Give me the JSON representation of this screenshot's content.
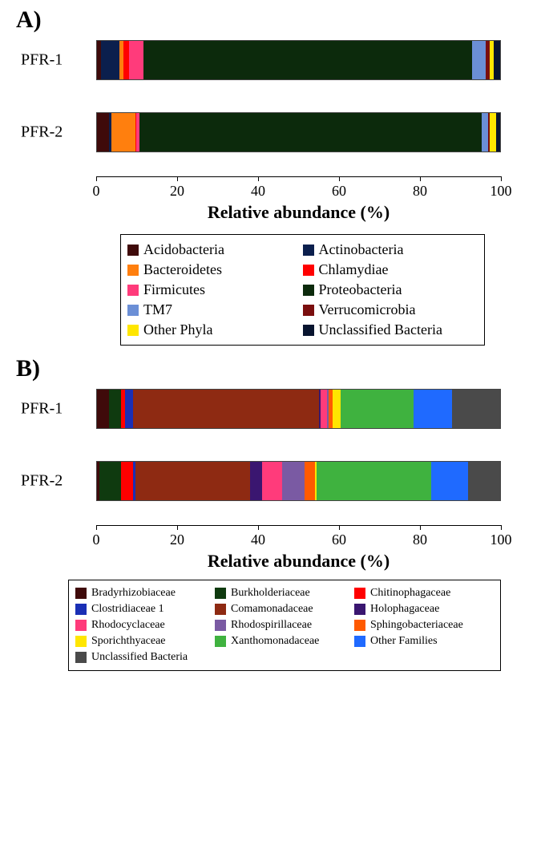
{
  "panelA": {
    "label": "A)",
    "xlabel": "Relative abundance (%)",
    "xlim": [
      0,
      100
    ],
    "xtick_step": 20,
    "tick_fontsize": 18,
    "xlabel_fontsize": 22,
    "rows": [
      {
        "label": "PFR-1",
        "segments": [
          {
            "name": "Acidobacteria",
            "value": 1.0,
            "color": "#3f0a0a"
          },
          {
            "name": "Actinobacteria",
            "value": 4.5,
            "color": "#0b1f4d"
          },
          {
            "name": "Bacteroidetes",
            "value": 1.0,
            "color": "#ff7f0e"
          },
          {
            "name": "Chlamydiae",
            "value": 1.5,
            "color": "#ff0000"
          },
          {
            "name": "Firmicutes",
            "value": 3.5,
            "color": "#ff3b7b"
          },
          {
            "name": "Proteobacteria",
            "value": 81.5,
            "color": "#0c2a0c"
          },
          {
            "name": "TM7",
            "value": 3.5,
            "color": "#6b8fd6"
          },
          {
            "name": "Verrucomicrobia",
            "value": 1.0,
            "color": "#7a0e0e"
          },
          {
            "name": "Other Phyla",
            "value": 1.0,
            "color": "#ffe600"
          },
          {
            "name": "Unclassified Bacteria",
            "value": 1.5,
            "color": "#08142f"
          }
        ]
      },
      {
        "label": "PFR-2",
        "segments": [
          {
            "name": "Acidobacteria",
            "value": 3.0,
            "color": "#3f0a0a"
          },
          {
            "name": "Actinobacteria",
            "value": 0.5,
            "color": "#0b1f4d"
          },
          {
            "name": "Bacteroidetes",
            "value": 6.0,
            "color": "#ff7f0e"
          },
          {
            "name": "Chlamydiae",
            "value": 0.3,
            "color": "#ff0000"
          },
          {
            "name": "Firmicutes",
            "value": 0.7,
            "color": "#ff3b7b"
          },
          {
            "name": "Proteobacteria",
            "value": 85.0,
            "color": "#0c2a0c"
          },
          {
            "name": "TM7",
            "value": 1.5,
            "color": "#6b8fd6"
          },
          {
            "name": "Verrucomicrobia",
            "value": 0.5,
            "color": "#7a0e0e"
          },
          {
            "name": "Other Phyla",
            "value": 1.5,
            "color": "#ffe600"
          },
          {
            "name": "Unclassified Bacteria",
            "value": 1.0,
            "color": "#08142f"
          }
        ]
      }
    ],
    "legend": {
      "columns": 2,
      "fontsize": 18,
      "items": [
        {
          "label": "Acidobacteria",
          "color": "#3f0a0a"
        },
        {
          "label": "Actinobacteria",
          "color": "#0b1f4d"
        },
        {
          "label": "Bacteroidetes",
          "color": "#ff7f0e"
        },
        {
          "label": "Chlamydiae",
          "color": "#ff0000"
        },
        {
          "label": "Firmicutes",
          "color": "#ff3b7b"
        },
        {
          "label": "Proteobacteria",
          "color": "#0c2a0c"
        },
        {
          "label": "TM7",
          "color": "#6b8fd6"
        },
        {
          "label": "Verrucomicrobia",
          "color": "#7a0e0e"
        },
        {
          "label": "Other Phyla",
          "color": "#ffe600"
        },
        {
          "label": "Unclassified Bacteria",
          "color": "#08142f"
        }
      ]
    }
  },
  "panelB": {
    "label": "B)",
    "xlabel": "Relative abundance (%)",
    "xlim": [
      0,
      100
    ],
    "xtick_step": 20,
    "tick_fontsize": 18,
    "xlabel_fontsize": 22,
    "rows": [
      {
        "label": "PFR-1",
        "segments": [
          {
            "name": "Bradyrhizobiaceae",
            "value": 3.0,
            "color": "#3f0a0a"
          },
          {
            "name": "Burkholderiaceae",
            "value": 3.0,
            "color": "#0f3a0f"
          },
          {
            "name": "Chitinophagaceae",
            "value": 1.0,
            "color": "#ff0000"
          },
          {
            "name": "Clostridiaceae 1",
            "value": 2.0,
            "color": "#1a2fb5"
          },
          {
            "name": "Comamonadaceae",
            "value": 46.0,
            "color": "#8e2a12"
          },
          {
            "name": "Holophagaceae",
            "value": 0.5,
            "color": "#3a1670"
          },
          {
            "name": "Rhodocyclaceae",
            "value": 1.5,
            "color": "#ff3b7b"
          },
          {
            "name": "Rhodospirillaceae",
            "value": 0.5,
            "color": "#7a5aa3"
          },
          {
            "name": "Sphingobacteriaceae",
            "value": 1.0,
            "color": "#ff5a00"
          },
          {
            "name": "Sporichthyaceae",
            "value": 2.0,
            "color": "#ffe600"
          },
          {
            "name": "Xanthomonadaceae",
            "value": 18.0,
            "color": "#3fb23f"
          },
          {
            "name": "Other Families",
            "value": 9.5,
            "color": "#1f6aff"
          },
          {
            "name": "Unclassified Bacteria",
            "value": 12.0,
            "color": "#4a4a4a"
          }
        ]
      },
      {
        "label": "PFR-2",
        "segments": [
          {
            "name": "Bradyrhizobiaceae",
            "value": 0.5,
            "color": "#3f0a0a"
          },
          {
            "name": "Burkholderiaceae",
            "value": 5.5,
            "color": "#0f3a0f"
          },
          {
            "name": "Chitinophagaceae",
            "value": 3.0,
            "color": "#ff0000"
          },
          {
            "name": "Clostridiaceae 1",
            "value": 0.5,
            "color": "#1a2fb5"
          },
          {
            "name": "Comamonadaceae",
            "value": 28.5,
            "color": "#8e2a12"
          },
          {
            "name": "Holophagaceae",
            "value": 3.0,
            "color": "#3a1670"
          },
          {
            "name": "Rhodocyclaceae",
            "value": 5.0,
            "color": "#ff3b7b"
          },
          {
            "name": "Rhodospirillaceae",
            "value": 5.5,
            "color": "#7a5aa3"
          },
          {
            "name": "Sphingobacteriaceae",
            "value": 2.5,
            "color": "#ff5a00"
          },
          {
            "name": "Sporichthyaceae",
            "value": 0.5,
            "color": "#ffe600"
          },
          {
            "name": "Xanthomonadaceae",
            "value": 28.5,
            "color": "#3fb23f"
          },
          {
            "name": "Other Families",
            "value": 9.0,
            "color": "#1f6aff"
          },
          {
            "name": "Unclassified Bacteria",
            "value": 8.0,
            "color": "#4a4a4a"
          }
        ]
      }
    ],
    "legend": {
      "columns": 3,
      "fontsize": 14,
      "items": [
        {
          "label": "Bradyrhizobiaceae",
          "color": "#3f0a0a"
        },
        {
          "label": "Burkholderiaceae",
          "color": "#0f3a0f"
        },
        {
          "label": "Chitinophagaceae",
          "color": "#ff0000"
        },
        {
          "label": "Clostridiaceae 1",
          "color": "#1a2fb5"
        },
        {
          "label": "Comamonadaceae",
          "color": "#8e2a12"
        },
        {
          "label": "Holophagaceae",
          "color": "#3a1670"
        },
        {
          "label": "Rhodocyclaceae",
          "color": "#ff3b7b"
        },
        {
          "label": "Rhodospirillaceae",
          "color": "#7a5aa3"
        },
        {
          "label": "Sphingobacteriaceae",
          "color": "#ff5a00"
        },
        {
          "label": "Sporichthyaceae",
          "color": "#ffe600"
        },
        {
          "label": "Xanthomonadaceae",
          "color": "#3fb23f"
        },
        {
          "label": "Other Families",
          "color": "#1f6aff"
        },
        {
          "label": "Unclassified Bacteria",
          "color": "#4a4a4a"
        }
      ]
    }
  }
}
